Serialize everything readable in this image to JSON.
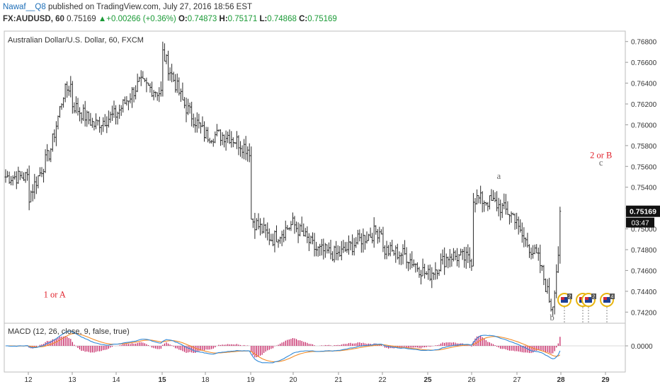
{
  "header": {
    "author": "Nawaf__Q8",
    "published_text": "published on TradingView.com, July 27, 2016 18:56 EST",
    "symbol": "FX:AUDUSD, 60",
    "last": "0.75169",
    "change": "▲+0.00266 (+0.36%)",
    "o_label": "O:",
    "o_val": "0.74873",
    "h_label": "H:",
    "h_val": "0.75171",
    "l_label": "L:",
    "l_val": "0.74868",
    "c_label": "C:",
    "c_val": "0.75169"
  },
  "price_panel": {
    "title": "Australian Dollar/U.S. Dollar, 60, FXCM",
    "price_ticks": [
      "0.76800",
      "0.76600",
      "0.76400",
      "0.76200",
      "0.76000",
      "0.75800",
      "0.75600",
      "0.75400",
      "0.75200",
      "0.75000",
      "0.74800",
      "0.74600",
      "0.74400",
      "0.74200"
    ],
    "last_price_label": "0.75169",
    "countdown_label": "03:47",
    "annotations": [
      "1 or A",
      "a",
      "b",
      "2 or B",
      "c"
    ],
    "event_badges": [
      "2",
      "4",
      "2",
      "4"
    ]
  },
  "macd_panel": {
    "title": "MACD (12, 26, close, 9, false, true)",
    "zero_label": "0.0000"
  },
  "x_axis": {
    "labels": [
      "12",
      "13",
      "14",
      "15",
      "18",
      "19",
      "20",
      "21",
      "22",
      "25",
      "26",
      "27",
      "28",
      "29"
    ]
  },
  "colors": {
    "bars": "#2b2b2b",
    "macd_line": "#2f89d8",
    "signal_line": "#f28c28",
    "histogram": "#c2185b",
    "annotation_red": "#e0202a",
    "annotation_gray": "#666666",
    "last_price_bg": "#111111",
    "up_green": "#1a9a36"
  },
  "chart_data": {
    "type": "ohlc",
    "title": "Australian Dollar/U.S. Dollar, 60, FXCM",
    "ylim": [
      0.741,
      0.769
    ],
    "x_categories": [
      "12",
      "13",
      "14",
      "15",
      "18",
      "19",
      "20",
      "21",
      "22",
      "25",
      "26",
      "27",
      "28",
      "29"
    ],
    "closes_path": [
      [
        "12",
        0.755
      ],
      [
        "12",
        0.753
      ],
      [
        "12.5",
        0.7575
      ],
      [
        "12.8",
        0.763
      ],
      [
        "13",
        0.764
      ],
      [
        "13",
        0.762
      ],
      [
        "13.5",
        0.76
      ],
      [
        "14",
        0.761
      ],
      [
        "14.5",
        0.764
      ],
      [
        "15",
        0.763
      ],
      [
        "15",
        0.767
      ],
      [
        "15.5",
        0.762
      ],
      [
        "18",
        0.759
      ],
      [
        "18.5",
        0.759
      ],
      [
        "19",
        0.7575
      ],
      [
        "19",
        0.751
      ],
      [
        "19.5",
        0.749
      ],
      [
        "20",
        0.7505
      ],
      [
        "20.5",
        0.748
      ],
      [
        "21",
        0.7475
      ],
      [
        "21.5",
        0.749
      ],
      [
        "22",
        0.75
      ],
      [
        "22",
        0.748
      ],
      [
        "22.5",
        0.7475
      ],
      [
        "25",
        0.7455
      ],
      [
        "25.5",
        0.7475
      ],
      [
        "26",
        0.747
      ],
      [
        "26",
        0.753
      ],
      [
        "26.5",
        0.7525
      ],
      [
        "27",
        0.751
      ],
      [
        "27",
        0.75
      ],
      [
        "27.5",
        0.747
      ],
      [
        "27.8",
        0.7422
      ],
      [
        "28",
        0.75
      ],
      [
        "28",
        0.7517
      ]
    ],
    "last_close": 0.75169,
    "annotations": [
      {
        "text": "1 or A",
        "x": "24.6",
        "price": 0.7434
      },
      {
        "text": "a",
        "x": "26.6",
        "price": 0.7548
      },
      {
        "text": "b",
        "x": "27.8",
        "price": 0.7412
      },
      {
        "text": "2 or B",
        "x": "28.9",
        "price": 0.7568
      },
      {
        "text": "c",
        "x": "28.9",
        "price": 0.7561
      }
    ],
    "macd": {
      "title": "MACD (12, 26, close, 9, false, true)",
      "zero_label": "0.0000"
    }
  }
}
